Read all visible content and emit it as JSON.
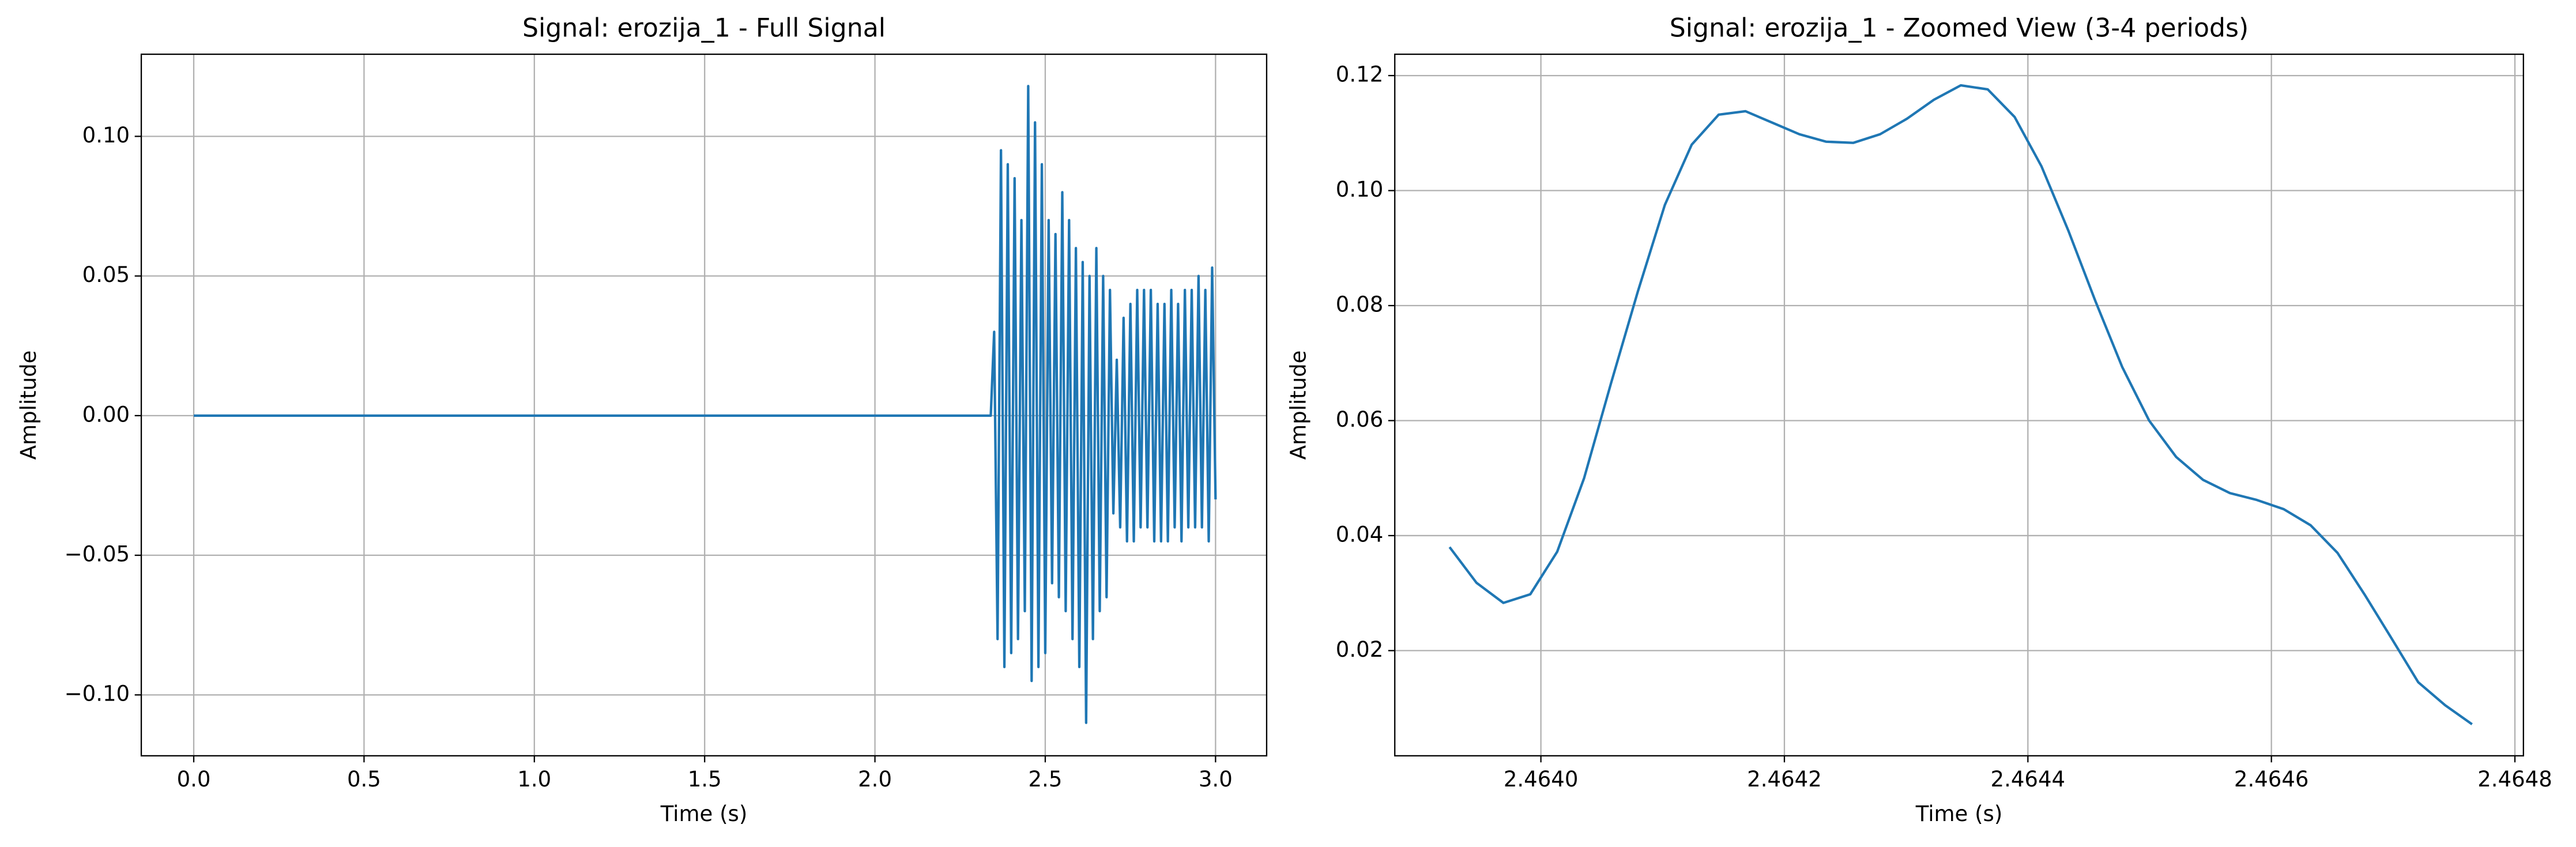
{
  "chart_data": [
    {
      "type": "line",
      "title": "Signal: erozija_1 - Full Signal",
      "x_label": "Time (s)",
      "y_label": "Amplitude",
      "color": "#1f77b4",
      "grid": true,
      "xlim": [
        -0.154,
        3.15
      ],
      "ylim": [
        -0.1218,
        0.1294
      ],
      "xticks": [
        {
          "value": 0,
          "label": "0.0"
        },
        {
          "value": 0.5,
          "label": "0.5"
        },
        {
          "value": 1,
          "label": "1.0"
        },
        {
          "value": 1.5,
          "label": "1.5"
        },
        {
          "value": 2,
          "label": "2.0"
        },
        {
          "value": 2.5,
          "label": "2.5"
        },
        {
          "value": 3,
          "label": "3.0"
        }
      ],
      "yticks": [
        {
          "value": -0.1,
          "label": "−0.10"
        },
        {
          "value": -0.05,
          "label": "−0.05"
        },
        {
          "value": 0,
          "label": "0.00"
        },
        {
          "value": 0.05,
          "label": "0.05"
        },
        {
          "value": 0.1,
          "label": "0.10"
        }
      ],
      "x": [
        0,
        2.34,
        2.35,
        2.36,
        2.37,
        2.38,
        2.39,
        2.4,
        2.41,
        2.42,
        2.43,
        2.44,
        2.45,
        2.46,
        2.47,
        2.48,
        2.49,
        2.5,
        2.51,
        2.52,
        2.53,
        2.54,
        2.55,
        2.56,
        2.57,
        2.58,
        2.59,
        2.6,
        2.61,
        2.62,
        2.63,
        2.64,
        2.65,
        2.66,
        2.67,
        2.68,
        2.69,
        2.7,
        2.71,
        2.72,
        2.73,
        2.74,
        2.75,
        2.76,
        2.77,
        2.78,
        2.79,
        2.8,
        2.81,
        2.82,
        2.83,
        2.84,
        2.85,
        2.86,
        2.87,
        2.88,
        2.89,
        2.9,
        2.91,
        2.92,
        2.93,
        2.94,
        2.95,
        2.96,
        2.97,
        2.98,
        2.99,
        3.0
      ],
      "values": [
        0,
        0,
        0.03,
        -0.08,
        0.095,
        -0.09,
        0.09,
        -0.085,
        0.085,
        -0.08,
        0.07,
        -0.07,
        0.118,
        -0.095,
        0.105,
        -0.09,
        0.09,
        -0.085,
        0.07,
        -0.06,
        0.065,
        -0.065,
        0.08,
        -0.07,
        0.07,
        -0.08,
        0.06,
        -0.09,
        0.055,
        -0.11,
        0.05,
        -0.08,
        0.06,
        -0.07,
        0.05,
        -0.065,
        0.045,
        -0.035,
        0.02,
        -0.04,
        0.035,
        -0.045,
        0.04,
        -0.045,
        0.045,
        -0.04,
        0.045,
        -0.04,
        0.045,
        -0.045,
        0.04,
        -0.045,
        0.04,
        -0.045,
        0.045,
        -0.04,
        0.04,
        -0.045,
        0.045,
        -0.04,
        0.045,
        -0.04,
        0.05,
        -0.04,
        0.045,
        -0.045,
        0.053,
        -0.03
      ]
    },
    {
      "type": "line",
      "title": "Signal: erozija_1 - Zoomed View (3-4 periods)",
      "x_label": "Time (s)",
      "y_label": "Amplitude",
      "color": "#1f77b4",
      "grid": true,
      "xlim": [
        2.46388,
        2.464807
      ],
      "ylim": [
        0.00171,
        0.12371
      ],
      "xticks": [
        {
          "value": 2.464,
          "label": "2.4640"
        },
        {
          "value": 2.4642,
          "label": "2.4642"
        },
        {
          "value": 2.4644,
          "label": "2.4644"
        },
        {
          "value": 2.4646,
          "label": "2.4646"
        },
        {
          "value": 2.4648,
          "label": "2.4648"
        }
      ],
      "yticks": [
        {
          "value": 0.02,
          "label": "0.02"
        },
        {
          "value": 0.04,
          "label": "0.04"
        },
        {
          "value": 0.06,
          "label": "0.06"
        },
        {
          "value": 0.08,
          "label": "0.08"
        },
        {
          "value": 0.1,
          "label": "0.10"
        },
        {
          "value": 0.12,
          "label": "0.12"
        }
      ],
      "x": [
        2.463925,
        2.4639471,
        2.4639692,
        2.4639913,
        2.4640134,
        2.4640355,
        2.4640576,
        2.4640797,
        2.4641018,
        2.4641239,
        2.464146,
        2.4641681,
        2.4641902,
        2.4642123,
        2.4642344,
        2.4642565,
        2.4642786,
        2.4643007,
        2.4643228,
        2.4643449,
        2.464367,
        2.4643891,
        2.4644112,
        2.4644333,
        2.4644554,
        2.4644775,
        2.4644996,
        2.4645217,
        2.4645438,
        2.4645659,
        2.464588,
        2.4646101,
        2.4646322,
        2.4646543,
        2.4646764,
        2.4646985,
        2.4647206,
        2.4647427,
        2.4647648
      ],
      "values": [
        0.038,
        0.0318,
        0.0283,
        0.0298,
        0.0372,
        0.05,
        0.0665,
        0.0825,
        0.0975,
        0.108,
        0.1132,
        0.1138,
        0.1118,
        0.1098,
        0.1085,
        0.1083,
        0.1098,
        0.1125,
        0.1158,
        0.1183,
        0.1176,
        0.1128,
        0.1042,
        0.093,
        0.0808,
        0.0693,
        0.06,
        0.0537,
        0.0497,
        0.0474,
        0.0462,
        0.0446,
        0.0418,
        0.037,
        0.0298,
        0.0222,
        0.0145,
        0.0105,
        0.0072
      ]
    }
  ]
}
